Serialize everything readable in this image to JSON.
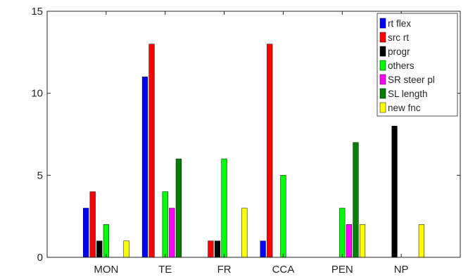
{
  "chart_data": {
    "type": "bar",
    "categories": [
      "MON",
      "TE",
      "FR",
      "CCA",
      "PEN",
      "NP"
    ],
    "series": [
      {
        "name": "rt flex",
        "color": "#0000ff",
        "values": [
          3,
          11,
          0,
          1,
          0,
          0
        ]
      },
      {
        "name": "src rt",
        "color": "#ff0000",
        "values": [
          4,
          13,
          1,
          13,
          0,
          0
        ]
      },
      {
        "name": "progr",
        "color": "#000000",
        "values": [
          1,
          0,
          1,
          0,
          0,
          8
        ]
      },
      {
        "name": "others",
        "color": "#00ff00",
        "values": [
          2,
          4,
          6,
          5,
          3,
          0
        ]
      },
      {
        "name": "SR steer pl",
        "color": "#ff00ff",
        "values": [
          0,
          3,
          0,
          0,
          2,
          0
        ]
      },
      {
        "name": "SL length",
        "color": "#008000",
        "values": [
          0,
          6,
          0,
          0,
          7,
          0
        ]
      },
      {
        "name": "new fnc",
        "color": "#ffff00",
        "values": [
          1,
          0,
          3,
          0,
          2,
          2
        ]
      }
    ],
    "ylim": [
      0,
      15
    ],
    "yticks": [
      0,
      5,
      10,
      15
    ],
    "grid": false,
    "legend_position": "top-right"
  }
}
